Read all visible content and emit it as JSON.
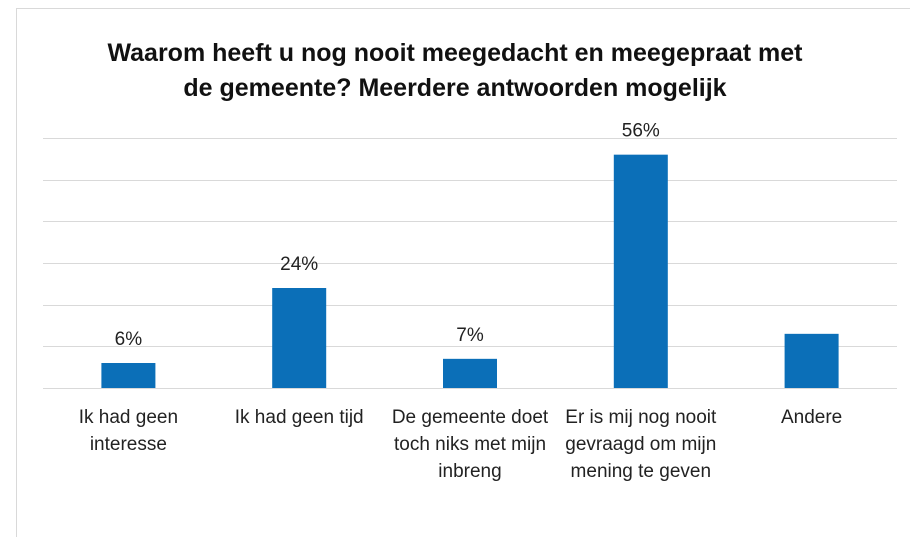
{
  "chart_data": {
    "type": "bar",
    "title": "Waarom heeft u nog nooit meegedacht en meegepraat met de gemeente? Meerdere antwoorden mogelijk",
    "categories": [
      "Ik had geen interesse",
      "Ik had geen tijd",
      "De gemeente doet toch niks met mijn inbreng",
      "Er is mij nog nooit gevraagd om mijn mening te geven",
      "Andere"
    ],
    "values": [
      6,
      24,
      7,
      56,
      13
    ],
    "value_labels": [
      "6%",
      "24%",
      "7%",
      "56%",
      null
    ],
    "color": "#0b6fb8",
    "ylim": [
      0,
      60
    ],
    "yticks": [
      0,
      10,
      20,
      30,
      40,
      50,
      60
    ],
    "grid": true
  }
}
